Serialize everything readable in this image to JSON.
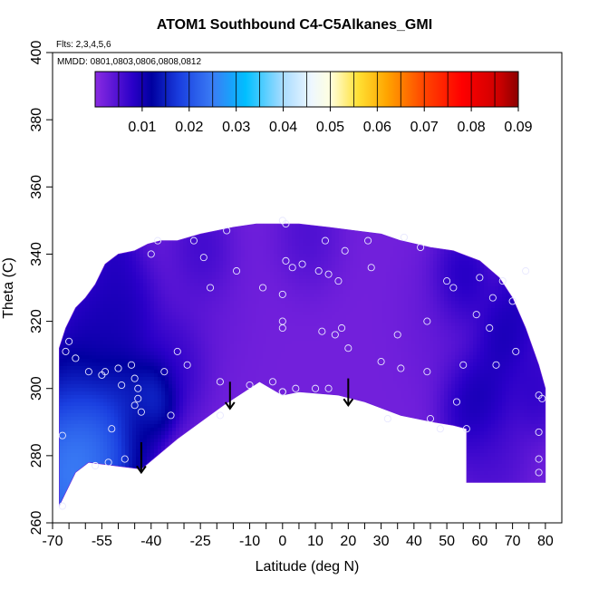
{
  "chart_data": {
    "type": "heatmap",
    "title": "ATOM1 Southbound C4-C5Alkanes_GMI",
    "flights_label": "Flts: 2,3,4,5,6",
    "dates_label": "MMDD: 0801,0803,0806,0808,0812",
    "xlabel": "Latitude (deg N)",
    "ylabel": "Theta (C)",
    "xlim": [
      -70,
      85
    ],
    "ylim": [
      260,
      400
    ],
    "x_tick_labels": [
      "-70",
      "-55",
      "-40",
      "-25",
      "-10",
      "0",
      "10",
      "20",
      "30",
      "40",
      "50",
      "60",
      "70",
      "80"
    ],
    "x_tick_values": [
      -70,
      -55,
      -40,
      -25,
      -10,
      0,
      10,
      20,
      30,
      40,
      50,
      60,
      70,
      80
    ],
    "x_minor_ticks": [
      -65,
      -60,
      -50,
      -45,
      -35,
      -30,
      -20,
      -15,
      -5,
      5,
      15,
      25,
      35,
      45,
      55,
      65,
      75
    ],
    "y_tick_labels": [
      "260",
      "280",
      "300",
      "320",
      "340",
      "360",
      "380",
      "400"
    ],
    "y_tick_values": [
      260,
      280,
      300,
      320,
      340,
      360,
      380,
      400
    ],
    "colorbar": {
      "range": [
        0,
        0.09
      ],
      "tick_labels": [
        "0.01",
        "0.02",
        "0.03",
        "0.04",
        "0.05",
        "0.06",
        "0.07",
        "0.08",
        "0.09"
      ],
      "tick_values": [
        0.01,
        0.02,
        0.03,
        0.04,
        0.05,
        0.06,
        0.07,
        0.08,
        0.09
      ],
      "stops": [
        {
          "v": 0.0,
          "c": "#8a2be2"
        },
        {
          "v": 0.008,
          "c": "#2a00c8"
        },
        {
          "v": 0.012,
          "c": "#0000a0"
        },
        {
          "v": 0.018,
          "c": "#1a3fe0"
        },
        {
          "v": 0.025,
          "c": "#3a7cf5"
        },
        {
          "v": 0.032,
          "c": "#00bfff"
        },
        {
          "v": 0.04,
          "c": "#a9dcff"
        },
        {
          "v": 0.046,
          "c": "#eef7ff"
        },
        {
          "v": 0.05,
          "c": "#ffffe0"
        },
        {
          "v": 0.056,
          "c": "#ffe033"
        },
        {
          "v": 0.062,
          "c": "#ffa500"
        },
        {
          "v": 0.07,
          "c": "#ff4500"
        },
        {
          "v": 0.078,
          "c": "#ff0000"
        },
        {
          "v": 0.086,
          "c": "#cc0000"
        },
        {
          "v": 0.09,
          "c": "#8b0000"
        }
      ]
    },
    "boundary": [
      [
        -68,
        265
      ],
      [
        -66,
        269
      ],
      [
        -63,
        275
      ],
      [
        -59,
        278
      ],
      [
        -43,
        276
      ],
      [
        -32,
        285
      ],
      [
        -18,
        295
      ],
      [
        -7,
        302
      ],
      [
        0,
        298
      ],
      [
        5,
        299
      ],
      [
        17,
        298
      ],
      [
        25,
        296
      ],
      [
        36,
        292
      ],
      [
        46,
        290
      ],
      [
        52,
        289
      ],
      [
        56,
        288
      ],
      [
        56,
        272
      ],
      [
        71,
        272
      ],
      [
        80,
        272
      ],
      [
        80,
        300
      ],
      [
        78,
        307
      ],
      [
        74,
        318
      ],
      [
        70,
        327
      ],
      [
        66,
        333
      ],
      [
        60,
        338
      ],
      [
        52,
        341
      ],
      [
        45,
        342
      ],
      [
        36,
        344
      ],
      [
        30,
        346
      ],
      [
        22,
        347
      ],
      [
        14,
        348
      ],
      [
        5,
        349
      ],
      [
        -2,
        349
      ],
      [
        -8,
        349
      ],
      [
        -15,
        348
      ],
      [
        -25,
        346
      ],
      [
        -32,
        344
      ],
      [
        -37,
        344
      ],
      [
        -41,
        343
      ],
      [
        -45,
        341
      ],
      [
        -50,
        340
      ],
      [
        -54,
        337
      ],
      [
        -57,
        331
      ],
      [
        -60,
        327
      ],
      [
        -63,
        324
      ],
      [
        -66,
        318
      ],
      [
        -68,
        312
      ]
    ],
    "field": [
      {
        "x": -64,
        "y": 283,
        "v": 0.031,
        "s": 7
      },
      {
        "x": -58,
        "y": 282,
        "v": 0.027,
        "s": 6
      },
      {
        "x": -65,
        "y": 268,
        "v": 0.028,
        "s": 5
      },
      {
        "x": -51,
        "y": 288,
        "v": 0.022,
        "s": 6
      },
      {
        "x": -48,
        "y": 299,
        "v": 0.016,
        "s": 5
      },
      {
        "x": -63,
        "y": 298,
        "v": 0.016,
        "s": 6
      },
      {
        "x": -56,
        "y": 315,
        "v": 0.012,
        "s": 8
      },
      {
        "x": -47,
        "y": 323,
        "v": 0.011,
        "s": 6
      },
      {
        "x": -39,
        "y": 298,
        "v": 0.022,
        "s": 4
      },
      {
        "x": -33,
        "y": 308,
        "v": 0.01,
        "s": 6
      },
      {
        "x": -44,
        "y": 287,
        "v": 0.01,
        "s": 4
      },
      {
        "x": -51,
        "y": 339,
        "v": 0.01,
        "s": 4
      },
      {
        "x": -25,
        "y": 328,
        "v": 0.004,
        "s": 10
      },
      {
        "x": 0,
        "y": 320,
        "v": 0.002,
        "s": 14
      },
      {
        "x": 25,
        "y": 320,
        "v": 0.002,
        "s": 14
      },
      {
        "x": 48,
        "y": 322,
        "v": 0.004,
        "s": 8
      },
      {
        "x": -24,
        "y": 340,
        "v": 0.009,
        "s": 5
      },
      {
        "x": 8,
        "y": 343,
        "v": 0.008,
        "s": 6
      },
      {
        "x": 54,
        "y": 332,
        "v": 0.013,
        "s": 5
      },
      {
        "x": 59,
        "y": 296,
        "v": 0.013,
        "s": 6
      },
      {
        "x": 67,
        "y": 316,
        "v": 0.012,
        "s": 5
      },
      {
        "x": 75,
        "y": 330,
        "v": 0.011,
        "s": 5
      },
      {
        "x": 77,
        "y": 300,
        "v": 0.009,
        "s": 5
      },
      {
        "x": 64,
        "y": 280,
        "v": 0.006,
        "s": 6
      }
    ],
    "field_background": 0.002,
    "observations": [
      [
        -67,
        265
      ],
      [
        -67,
        286
      ],
      [
        -66,
        311
      ],
      [
        -65,
        314
      ],
      [
        -63,
        309
      ],
      [
        -59,
        305
      ],
      [
        -57,
        277
      ],
      [
        -55,
        304
      ],
      [
        -54,
        305
      ],
      [
        -53,
        278
      ],
      [
        -52,
        288
      ],
      [
        -50,
        306
      ],
      [
        -49,
        301
      ],
      [
        -48,
        279
      ],
      [
        -46,
        307
      ],
      [
        -45,
        303
      ],
      [
        -45,
        295
      ],
      [
        -44,
        297
      ],
      [
        -44,
        300
      ],
      [
        -43,
        293
      ],
      [
        -40,
        340
      ],
      [
        -38,
        344
      ],
      [
        -36,
        305
      ],
      [
        -34,
        292
      ],
      [
        -32,
        311
      ],
      [
        -29,
        307
      ],
      [
        -27,
        344
      ],
      [
        -24,
        339
      ],
      [
        -22,
        330
      ],
      [
        -19,
        302
      ],
      [
        -19,
        292
      ],
      [
        -17,
        347
      ],
      [
        -14,
        335
      ],
      [
        -10,
        301
      ],
      [
        -6,
        330
      ],
      [
        -3,
        302
      ],
      [
        0,
        350
      ],
      [
        0,
        299
      ],
      [
        0,
        320
      ],
      [
        0,
        328
      ],
      [
        0,
        318
      ],
      [
        0,
        299
      ],
      [
        1,
        338
      ],
      [
        1,
        349
      ],
      [
        3,
        336
      ],
      [
        4,
        300
      ],
      [
        6,
        337
      ],
      [
        10,
        300
      ],
      [
        11,
        335
      ],
      [
        12,
        317
      ],
      [
        13,
        344
      ],
      [
        14,
        300
      ],
      [
        14,
        334
      ],
      [
        16,
        316
      ],
      [
        17,
        332
      ],
      [
        18,
        318
      ],
      [
        19,
        341
      ],
      [
        20,
        312
      ],
      [
        26,
        344
      ],
      [
        27,
        336
      ],
      [
        30,
        308
      ],
      [
        32,
        291
      ],
      [
        35,
        316
      ],
      [
        36,
        306
      ],
      [
        37,
        345
      ],
      [
        42,
        342
      ],
      [
        44,
        320
      ],
      [
        44,
        305
      ],
      [
        45,
        291
      ],
      [
        48,
        288
      ],
      [
        50,
        332
      ],
      [
        52,
        330
      ],
      [
        53,
        296
      ],
      [
        55,
        307
      ],
      [
        56,
        288
      ],
      [
        59,
        322
      ],
      [
        60,
        333
      ],
      [
        63,
        318
      ],
      [
        64,
        327
      ],
      [
        65,
        307
      ],
      [
        67,
        332
      ],
      [
        70,
        326
      ],
      [
        71,
        311
      ],
      [
        74,
        335
      ],
      [
        78,
        298
      ],
      [
        78,
        287
      ],
      [
        78,
        279
      ],
      [
        78,
        275
      ],
      [
        79,
        297
      ]
    ],
    "arrows": [
      {
        "x": -43,
        "y_top": 284,
        "y_tip": 275
      },
      {
        "x": -16,
        "y_top": 302,
        "y_tip": 294
      },
      {
        "x": 20,
        "y_top": 303,
        "y_tip": 295
      }
    ]
  }
}
